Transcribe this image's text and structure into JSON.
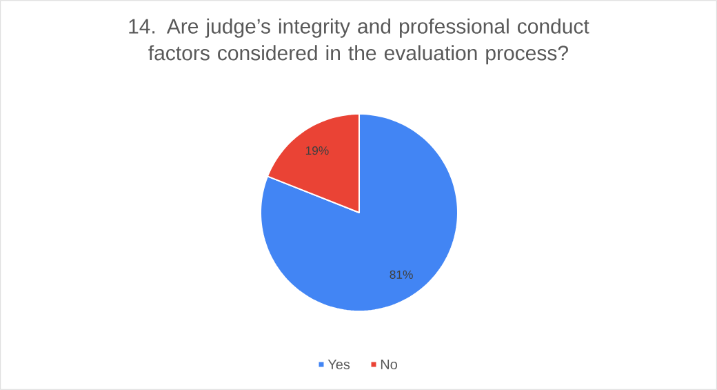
{
  "chart_data": {
    "type": "pie",
    "title": "14. Are judge’s integrity and professional conduct factors considered in the evaluation process?",
    "categories": [
      "Yes",
      "No"
    ],
    "values": [
      81,
      19
    ],
    "colors": [
      "#4285f4",
      "#ea4335"
    ],
    "value_labels": [
      "81%",
      "19%"
    ],
    "legend": "bottom"
  }
}
